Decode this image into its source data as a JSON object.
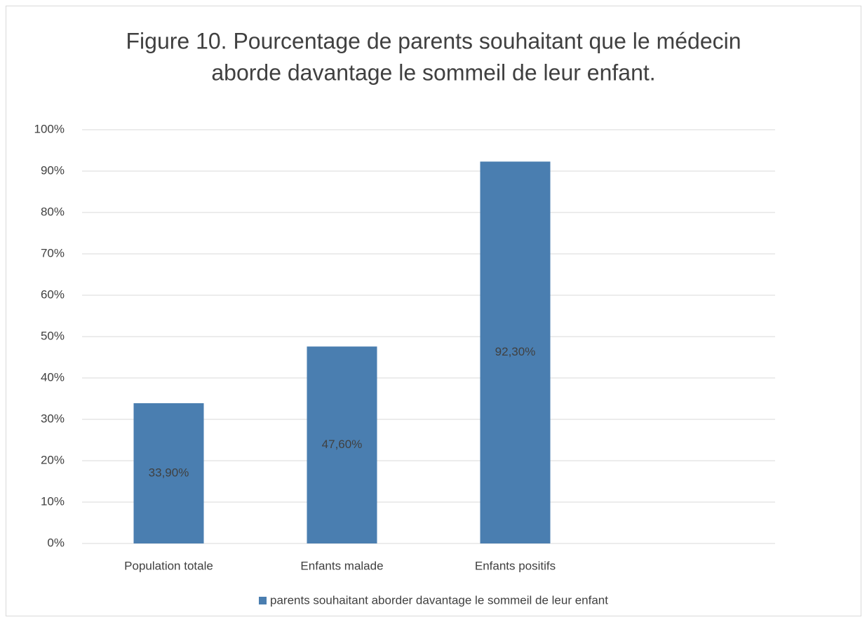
{
  "chart_data": {
    "type": "bar",
    "title": [
      "Figure 10. Pourcentage de parents souhaitant que le médecin",
      "aborde davantage le sommeil de leur enfant."
    ],
    "categories": [
      "Population totale",
      "Enfants malade",
      "Enfants positifs",
      null
    ],
    "series": [
      {
        "name": "parents souhaitant aborder davantage le sommeil de leur enfant",
        "color": "#4a7eb0",
        "values": [
          33.9,
          47.6,
          92.3,
          null
        ],
        "value_labels": [
          "33,90%",
          "47,60%",
          "92,30%",
          null
        ]
      }
    ],
    "ylim": [
      0,
      100
    ],
    "yticks": [
      {
        "value": 0,
        "label": "0%"
      },
      {
        "value": 10,
        "label": "10%"
      },
      {
        "value": 20,
        "label": "20%"
      },
      {
        "value": 30,
        "label": "30%"
      },
      {
        "value": 40,
        "label": "40%"
      },
      {
        "value": 50,
        "label": "50%"
      },
      {
        "value": 60,
        "label": "60%"
      },
      {
        "value": 70,
        "label": "70%"
      },
      {
        "value": 80,
        "label": "80%"
      },
      {
        "value": 90,
        "label": "90%"
      },
      {
        "value": 100,
        "label": "100%"
      }
    ],
    "grid": true,
    "legend": "bottom"
  }
}
